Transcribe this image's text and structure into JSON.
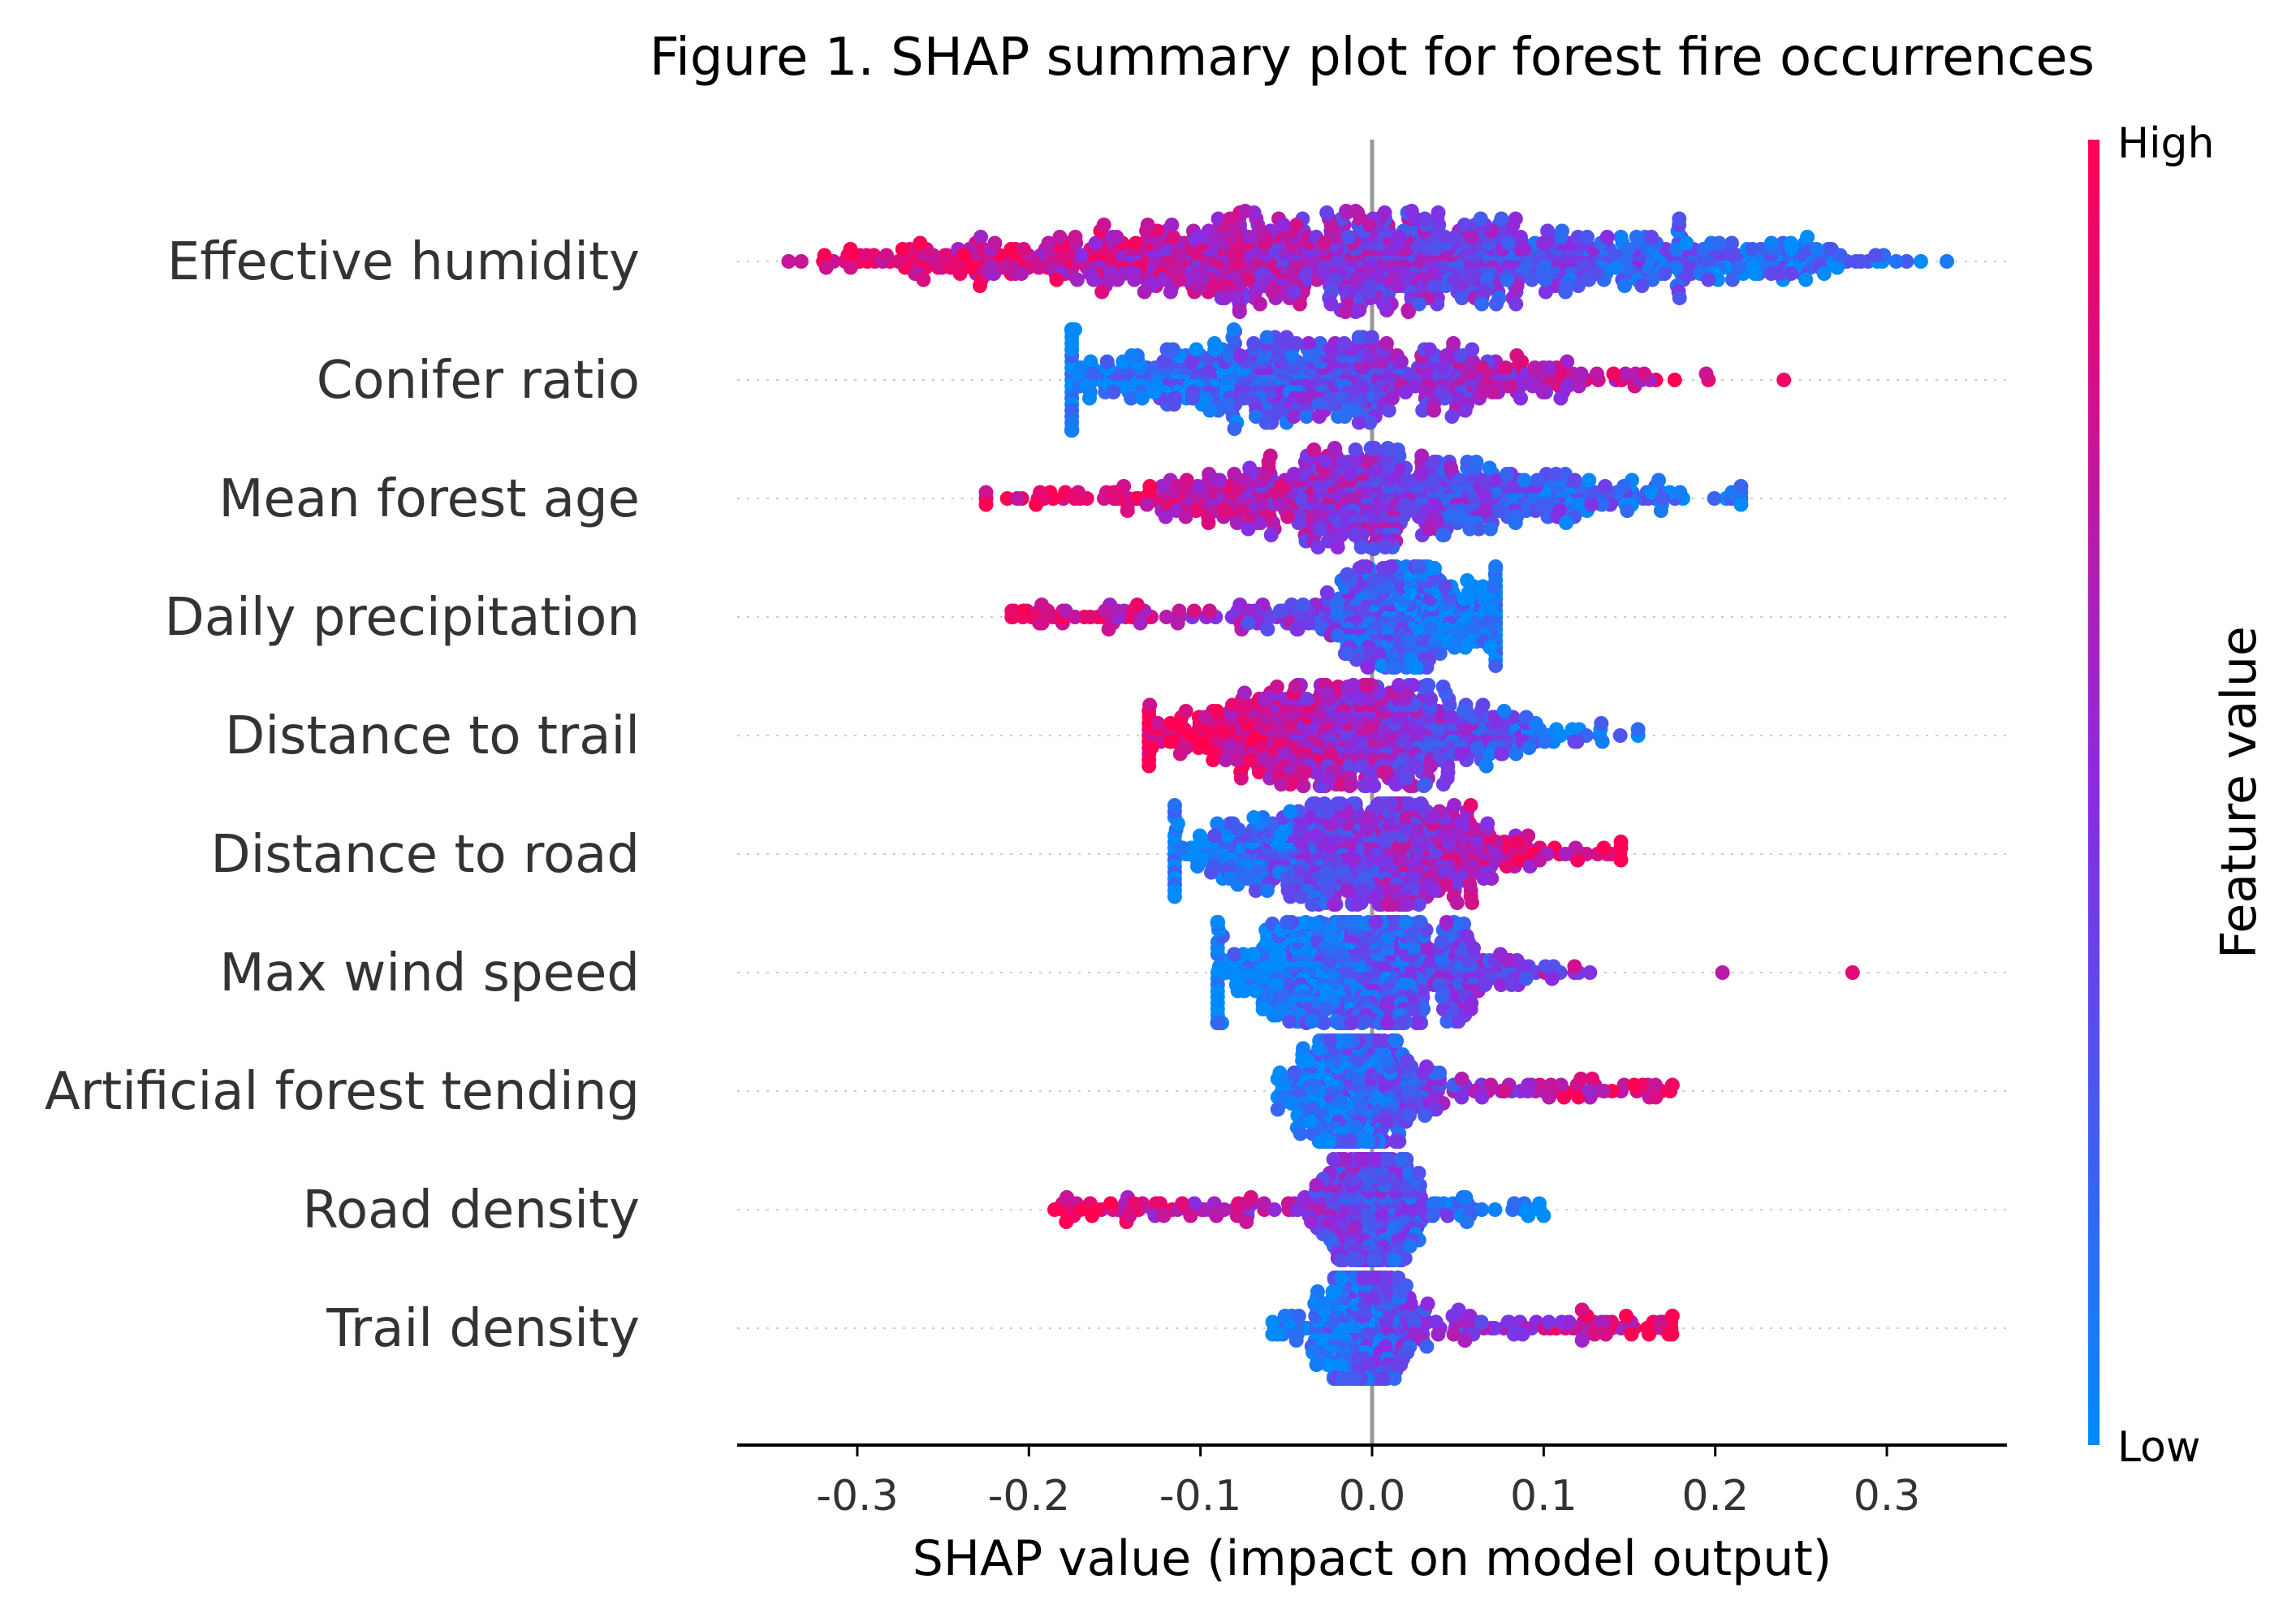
{
  "chart_data": {
    "type": "scatter",
    "subtype": "shap-beeswarm",
    "title": "Figure 1. SHAP summary plot for forest fire occurrences",
    "xlabel": "SHAP value (impact on model output)",
    "ylabel": "",
    "xlim": [
      -0.37,
      0.37
    ],
    "xticks": [
      -0.3,
      -0.2,
      -0.1,
      0.0,
      0.1,
      0.2,
      0.3
    ],
    "xtick_labels": [
      "-0.3",
      "-0.2",
      "-0.1",
      "0.0",
      "0.1",
      "0.2",
      "0.3"
    ],
    "grid": false,
    "colorbar": {
      "title": "Feature value",
      "high_label": "High",
      "low_label": "Low",
      "high_color": "#ff0052",
      "mid_color": "#8a2be2",
      "low_color": "#008bfb"
    },
    "features": [
      {
        "name": "Effective humidity",
        "min": -0.34,
        "max": 0.335,
        "center": 0.0,
        "spread": 0.22,
        "density": "wide",
        "high_side": "negative"
      },
      {
        "name": "Conifer ratio",
        "min": -0.175,
        "max": 0.24,
        "center": -0.04,
        "spread": 0.09,
        "density": "medium",
        "high_side": "positive"
      },
      {
        "name": "Mean forest age",
        "min": -0.225,
        "max": 0.215,
        "center": 0.0,
        "spread": 0.08,
        "density": "medium",
        "high_side": "negative"
      },
      {
        "name": "Daily precipitation",
        "min": -0.21,
        "max": 0.072,
        "center": 0.02,
        "spread": 0.03,
        "density": "narrow",
        "high_side": "negative"
      },
      {
        "name": "Distance to trail",
        "min": -0.13,
        "max": 0.155,
        "center": -0.01,
        "spread": 0.06,
        "density": "medium",
        "high_side": "negative"
      },
      {
        "name": "Distance to road",
        "min": -0.115,
        "max": 0.145,
        "center": -0.005,
        "spread": 0.055,
        "density": "medium",
        "high_side": "positive"
      },
      {
        "name": "Max wind speed",
        "min": -0.09,
        "max": 0.28,
        "center": -0.01,
        "spread": 0.05,
        "density": "medium",
        "high_side": "positive"
      },
      {
        "name": "Artificial forest tending",
        "min": -0.055,
        "max": 0.175,
        "center": -0.01,
        "spread": 0.02,
        "density": "narrow",
        "high_side": "positive"
      },
      {
        "name": "Road density",
        "min": -0.185,
        "max": 0.1,
        "center": 0.0,
        "spread": 0.015,
        "density": "narrow",
        "high_side": "negative"
      },
      {
        "name": "Trail density",
        "min": -0.058,
        "max": 0.175,
        "center": -0.005,
        "spread": 0.015,
        "density": "narrow",
        "high_side": "positive"
      }
    ]
  }
}
